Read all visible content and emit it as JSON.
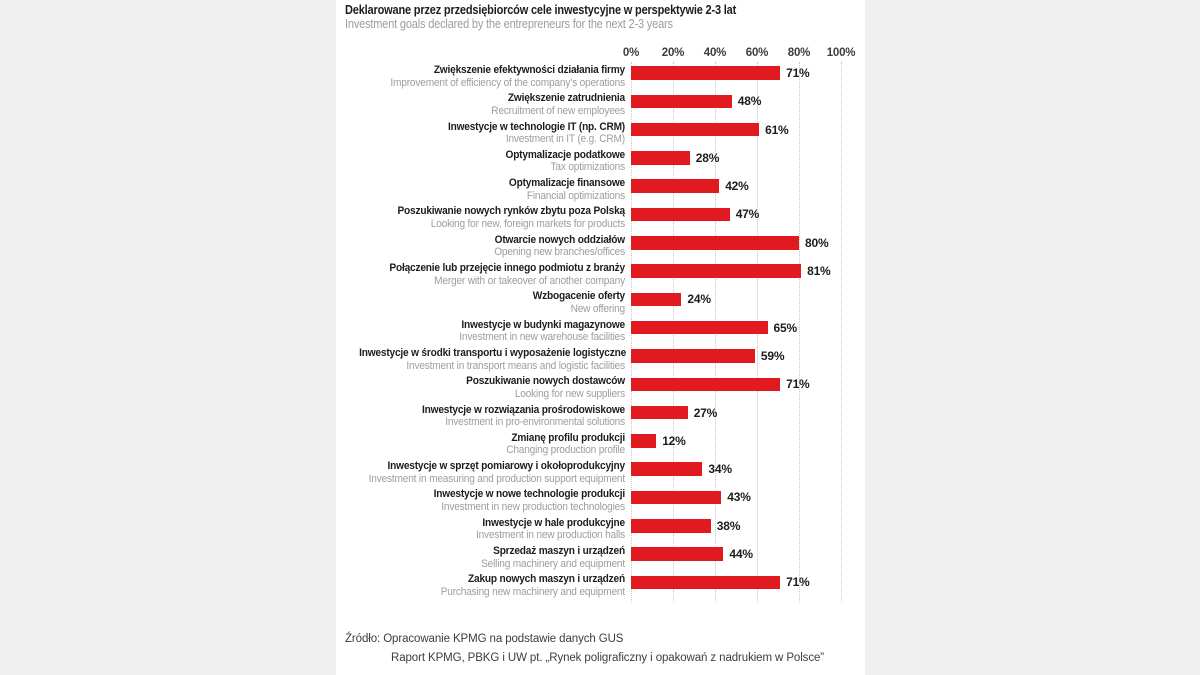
{
  "colors": {
    "background": "#f0f0f0",
    "panel": "#ffffff",
    "bar": "#e11a20",
    "ink": "#1d1d1b",
    "muted": "#9d9d9c",
    "axis_text": "#3d3d3c",
    "gridline": "#c7c7c6"
  },
  "chart_data": {
    "type": "bar",
    "orientation": "horizontal",
    "title_pl": "Deklarowane przez przedsiębiorców cele inwestycyjne w perspektywie 2-3 lat",
    "title_en": "Investment goals declared by the entrepreneurs for the next 2-3 years",
    "value_suffix": "%",
    "axis": {
      "min": 0,
      "max": 100,
      "ticks": [
        "0%",
        "20%",
        "40%",
        "60%",
        "80%",
        "100%"
      ],
      "grid": "dotted-vertical",
      "value_labels": "end-of-bar"
    },
    "categories": [
      {
        "pl": "Zwiększenie efektywności działania firmy",
        "en": "Improvement of efficiency of the company’s operations",
        "value": 71
      },
      {
        "pl": "Zwiększenie zatrudnienia",
        "en": "Recruitment of new employees",
        "value": 48
      },
      {
        "pl": "Inwestycje w technologie IT (np. CRM)",
        "en": "Investment in IT (e.g. CRM)",
        "value": 61
      },
      {
        "pl": "Optymalizacje podatkowe",
        "en": "Tax optimizations",
        "value": 28
      },
      {
        "pl": "Optymalizacje finansowe",
        "en": "Financial optimizations",
        "value": 42
      },
      {
        "pl": "Poszukiwanie nowych rynków zbytu poza Polską",
        "en": "Looking for new, foreign markets for products",
        "value": 47
      },
      {
        "pl": "Otwarcie nowych oddziałów",
        "en": "Opening new branches/offices",
        "value": 80
      },
      {
        "pl": "Połączenie lub przejęcie innego podmiotu z branży",
        "en": "Merger with or takeover of another company",
        "value": 81
      },
      {
        "pl": "Wzbogacenie oferty",
        "en": "New offering",
        "value": 24
      },
      {
        "pl": "Inwestycje w budynki magazynowe",
        "en": "Investment in new warehouse facilities",
        "value": 65
      },
      {
        "pl": "Inwestycje w środki transportu i wyposażenie logistyczne",
        "en": "Investment in transport means and logistic facilities",
        "value": 59
      },
      {
        "pl": "Poszukiwanie nowych dostawców",
        "en": "Looking for new suppliers",
        "value": 71
      },
      {
        "pl": "Inwestycje w rozwiązania prośrodowiskowe",
        "en": "Investment in pro-environmental solutions",
        "value": 27
      },
      {
        "pl": "Zmianę profilu produkcji",
        "en": "Changing production profile",
        "value": 12
      },
      {
        "pl": "Inwestycje w sprzęt pomiarowy i okołoprodukcyjny",
        "en": "Investment in measuring and production support equipment",
        "value": 34
      },
      {
        "pl": "Inwestycje w nowe technologie produkcji",
        "en": "Investment in new production technologies",
        "value": 43
      },
      {
        "pl": "Inwestycje w hale produkcyjne",
        "en": "Investment in new production halls",
        "value": 38
      },
      {
        "pl": "Sprzedaż maszyn i urządzeń",
        "en": "Selling machinery and equipment",
        "value": 44
      },
      {
        "pl": "Zakup nowych maszyn i urządzeń",
        "en": "Purchasing new machinery and equipment",
        "value": 71
      }
    ]
  },
  "footer": {
    "prefix": "Źródło:",
    "line1": "Opracowanie KPMG na podstawie danych GUS",
    "line2": "Raport KPMG, PBKG i UW pt. „Rynek poligraficzny i opakowań z nadrukiem w Polsce”"
  }
}
